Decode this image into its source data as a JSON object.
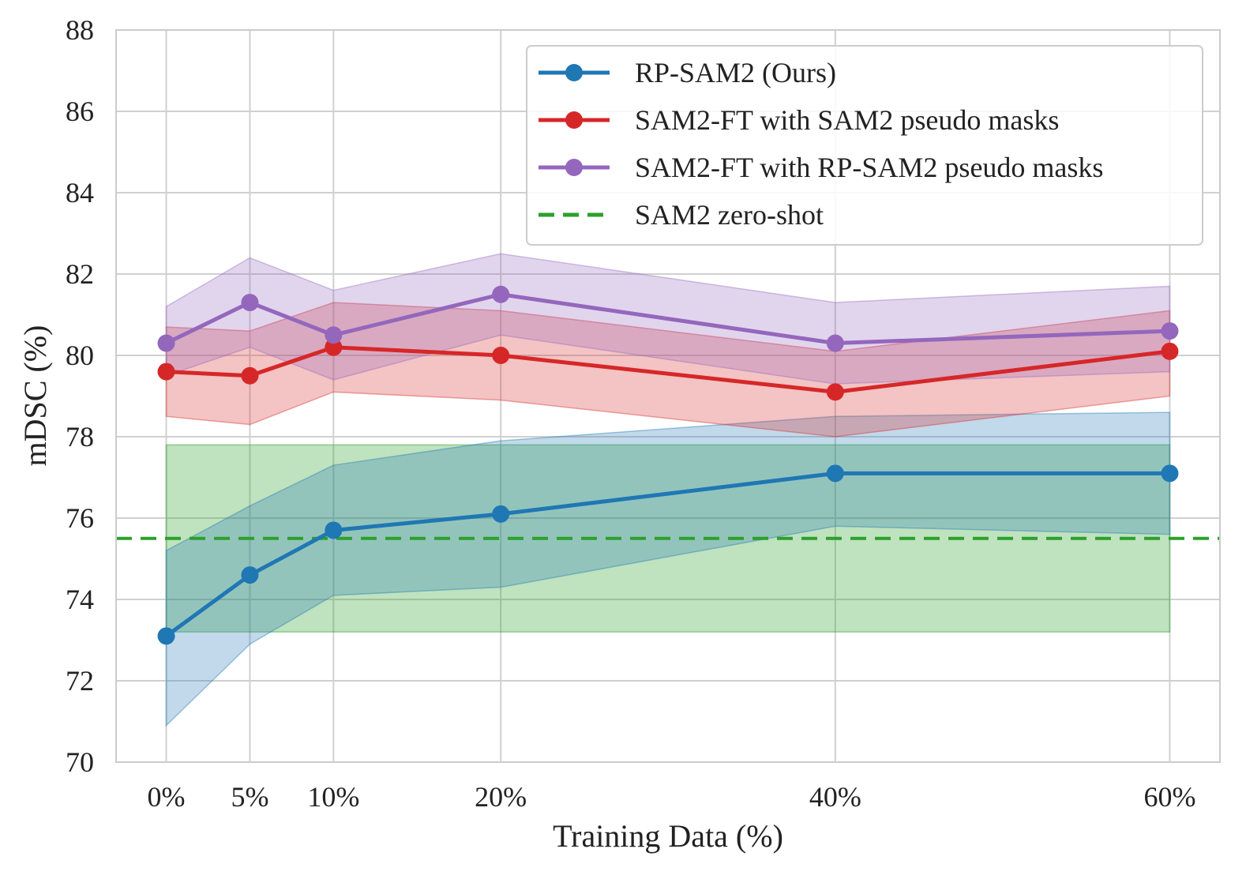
{
  "chart_data": {
    "type": "line",
    "title": "",
    "xlabel": "Training Data (%)",
    "ylabel": "mDSC (%)",
    "x": [
      0,
      5,
      10,
      20,
      40,
      60
    ],
    "x_tick_labels": [
      "0%",
      "5%",
      "10%",
      "20%",
      "40%",
      "60%"
    ],
    "xlim": [
      -3,
      63
    ],
    "ylim": [
      70,
      88
    ],
    "y_ticks": [
      70,
      72,
      74,
      76,
      78,
      80,
      82,
      84,
      86,
      88
    ],
    "grid": true,
    "legend_position": "top-right",
    "series": [
      {
        "name": "RP-SAM2 (Ours)",
        "color": "#1f77b4",
        "marker": "circle",
        "values": [
          73.1,
          74.6,
          75.7,
          76.1,
          77.1,
          77.1
        ],
        "band_lower": [
          70.9,
          72.9,
          74.1,
          74.3,
          75.8,
          75.6
        ],
        "band_upper": [
          75.2,
          76.3,
          77.3,
          77.9,
          78.5,
          78.6
        ]
      },
      {
        "name": "SAM2-FT with SAM2 pseudo masks",
        "color": "#d62728",
        "marker": "circle",
        "values": [
          79.6,
          79.5,
          80.2,
          80.0,
          79.1,
          80.1
        ],
        "band_lower": [
          78.5,
          78.3,
          79.1,
          78.9,
          78.0,
          79.0
        ],
        "band_upper": [
          80.7,
          80.6,
          81.3,
          81.1,
          80.1,
          81.1
        ]
      },
      {
        "name": "SAM2-FT with RP-SAM2 pseudo masks",
        "color": "#9467bd",
        "marker": "circle",
        "values": [
          80.3,
          81.3,
          80.5,
          81.5,
          80.3,
          80.6
        ],
        "band_lower": [
          79.5,
          80.2,
          79.4,
          80.5,
          79.3,
          79.6
        ],
        "band_upper": [
          81.2,
          82.4,
          81.6,
          82.5,
          81.3,
          81.7
        ]
      }
    ],
    "baseline": {
      "name": "SAM2 zero-shot",
      "color": "#2ca02c",
      "style": "dashed",
      "value": 75.5,
      "band_lower": 73.2,
      "band_upper": 77.8
    }
  }
}
